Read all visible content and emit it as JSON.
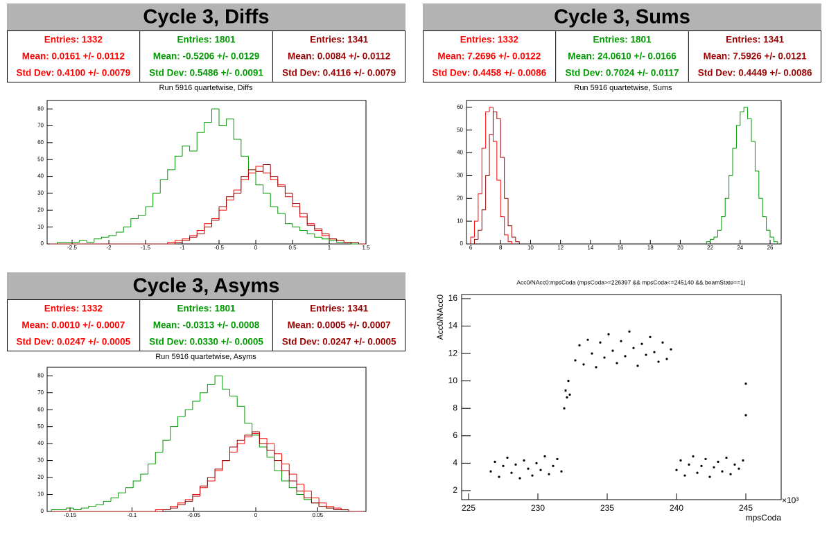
{
  "chart_data": [
    {
      "type": "histogram",
      "title": "Cycle 3, Diffs",
      "subtitle": "Run 5916 quartetwise, Diffs",
      "bins": [
        -2.8,
        -2.7,
        -2.6,
        -2.5,
        -2.4,
        -2.3,
        -2.2,
        -2.1,
        -2,
        -1.9,
        -1.8,
        -1.7,
        -1.6,
        -1.5,
        -1.4,
        -1.3,
        -1.2,
        -1.1,
        -1,
        -0.9,
        -0.8,
        -0.7,
        -0.6,
        -0.5,
        -0.4,
        -0.3,
        -0.2,
        -0.1,
        0,
        0.1,
        0.2,
        0.3,
        0.4,
        0.5,
        0.6,
        0.7,
        0.8,
        0.9,
        1,
        1.1,
        1.2,
        1.3,
        1.4,
        1.5
      ],
      "xlim": [
        -2.84,
        1.5
      ],
      "xticks": [
        -2.5,
        -2,
        -1.5,
        -1,
        -0.5,
        0,
        0.5,
        1,
        1.5
      ],
      "ylim": [
        0,
        85
      ],
      "yticks": [
        0,
        10,
        20,
        30,
        40,
        50,
        60,
        70,
        80
      ],
      "series": [
        {
          "color": "#ff0000",
          "stats": [
            "Entries: 1332",
            "Mean: 0.0161 +/- 0.0112",
            "Std Dev: 0.4100 +/- 0.0079"
          ],
          "values": [
            0,
            0,
            0,
            0,
            0,
            0,
            0,
            0,
            0,
            0,
            0,
            0,
            0,
            0,
            0,
            0,
            1,
            2,
            3,
            5,
            8,
            12,
            15,
            20,
            26,
            32,
            38,
            42,
            46,
            42,
            38,
            35,
            28,
            22,
            16,
            12,
            8,
            5,
            3,
            2,
            1,
            0,
            0
          ]
        },
        {
          "color": "#009900",
          "stats": [
            "Entries: 1801",
            "Mean: -0.5206 +/- 0.0129",
            "Std Dev: 0.5486 +/- 0.0091"
          ],
          "values": [
            0,
            1,
            1,
            1,
            2,
            1,
            3,
            4,
            5,
            7,
            10,
            15,
            17,
            22,
            30,
            38,
            44,
            52,
            58,
            55,
            66,
            72,
            80,
            70,
            74,
            62,
            52,
            44,
            35,
            30,
            22,
            18,
            12,
            10,
            8,
            6,
            4,
            3,
            2,
            1,
            1,
            0,
            0
          ]
        },
        {
          "color": "#990000",
          "stats": [
            "Entries: 1341",
            "Mean: 0.0084 +/- 0.0112",
            "Std Dev: 0.4116 +/- 0.0079"
          ],
          "values": [
            0,
            0,
            0,
            0,
            0,
            0,
            0,
            0,
            0,
            0,
            0,
            0,
            0,
            0,
            0,
            0,
            0,
            1,
            2,
            4,
            6,
            10,
            14,
            22,
            28,
            30,
            40,
            44,
            43,
            47,
            40,
            34,
            30,
            24,
            18,
            11,
            9,
            6,
            3,
            2,
            1,
            1,
            0
          ]
        }
      ]
    },
    {
      "type": "histogram",
      "title": "Cycle 3, Sums",
      "subtitle": "Run 5916 quartetwise, Sums",
      "xlim": [
        5.72,
        26.74
      ],
      "xticks": [
        6,
        8,
        10,
        12,
        14,
        16,
        18,
        20,
        22,
        24,
        26
      ],
      "ylim": [
        0,
        63
      ],
      "yticks": [
        0,
        10,
        20,
        30,
        40,
        50,
        60
      ],
      "series": [
        {
          "color": "#ff0000",
          "stats": [
            "Entries: 1332",
            "Mean: 7.2696 +/- 0.0122",
            "Std Dev: 0.4458 +/- 0.0086"
          ],
          "bins": [
            6,
            6.25,
            6.5,
            6.75,
            7,
            7.25,
            7.5,
            7.75,
            8,
            8.25,
            8.5,
            8.75
          ],
          "values": [
            3,
            10,
            22,
            42,
            58,
            60,
            45,
            28,
            12,
            4,
            1
          ]
        },
        {
          "color": "#009900",
          "stats": [
            "Entries: 1801",
            "Mean: 24.0610 +/- 0.0166",
            "Std Dev: 0.7024 +/- 0.0117"
          ],
          "bins": [
            21.75,
            22,
            22.25,
            22.5,
            22.75,
            23,
            23.25,
            23.5,
            23.75,
            24,
            24.25,
            24.5,
            24.75,
            25,
            25.25,
            25.5,
            25.75,
            26,
            26.25,
            26.5
          ],
          "values": [
            1,
            2,
            3,
            6,
            12,
            20,
            30,
            42,
            52,
            58,
            60,
            55,
            45,
            32,
            20,
            12,
            6,
            3,
            1
          ]
        },
        {
          "color": "#990000",
          "stats": [
            "Entries: 1341",
            "Mean: 7.5926 +/- 0.0121",
            "Std Dev: 0.4449 +/- 0.0086"
          ],
          "bins": [
            6.25,
            6.5,
            6.75,
            7,
            7.25,
            7.5,
            7.75,
            8,
            8.25,
            8.5,
            8.75,
            9,
            9.25
          ],
          "values": [
            2,
            6,
            15,
            30,
            48,
            58,
            55,
            38,
            20,
            8,
            3,
            1
          ]
        }
      ]
    },
    {
      "type": "histogram",
      "title": "Cycle 3, Asyms",
      "subtitle": "Run 5916 quartetwise, Asyms",
      "bins": [
        -0.165,
        -0.159,
        -0.153,
        -0.147,
        -0.141,
        -0.135,
        -0.129,
        -0.123,
        -0.117,
        -0.111,
        -0.105,
        -0.099,
        -0.093,
        -0.087,
        -0.081,
        -0.075,
        -0.069,
        -0.063,
        -0.057,
        -0.051,
        -0.045,
        -0.039,
        -0.033,
        -0.027,
        -0.021,
        -0.015,
        -0.009,
        -0.003,
        0.003,
        0.009,
        0.015,
        0.021,
        0.027,
        0.033,
        0.039,
        0.045,
        0.051,
        0.057,
        0.063,
        0.069,
        0.075,
        0.081,
        0.087
      ],
      "xlim": [
        -0.1685,
        0.089
      ],
      "xticks": [
        -0.15,
        -0.1,
        -0.05,
        0,
        0.05
      ],
      "ylim": [
        0,
        85
      ],
      "yticks": [
        0,
        10,
        20,
        30,
        40,
        50,
        60,
        70,
        80
      ],
      "series": [
        {
          "color": "#ff0000",
          "stats": [
            "Entries: 1332",
            "Mean: 0.0010 +/- 0.0007",
            "Std Dev: 0.0247 +/- 0.0005"
          ],
          "values": [
            0,
            0,
            0,
            0,
            0,
            0,
            0,
            0,
            0,
            0,
            0,
            0,
            0,
            0,
            1,
            1,
            3,
            5,
            7,
            10,
            14,
            18,
            24,
            30,
            35,
            40,
            44,
            46,
            43,
            40,
            34,
            28,
            22,
            16,
            12,
            8,
            5,
            3,
            2,
            1,
            0,
            0
          ]
        },
        {
          "color": "#009900",
          "stats": [
            "Entries: 1801",
            "Mean: -0.0313 +/- 0.0008",
            "Std Dev: 0.0330 +/- 0.0005"
          ],
          "values": [
            1,
            1,
            2,
            1,
            2,
            3,
            4,
            6,
            8,
            11,
            14,
            18,
            22,
            28,
            35,
            42,
            50,
            56,
            60,
            65,
            70,
            75,
            80,
            72,
            68,
            62,
            52,
            45,
            38,
            32,
            24,
            18,
            14,
            10,
            7,
            5,
            3,
            2,
            1,
            1,
            0,
            0
          ]
        },
        {
          "color": "#990000",
          "stats": [
            "Entries: 1341",
            "Mean: 0.0005 +/- 0.0007",
            "Std Dev: 0.0247 +/- 0.0005"
          ],
          "values": [
            0,
            0,
            0,
            0,
            0,
            0,
            0,
            0,
            0,
            0,
            0,
            0,
            0,
            0,
            0,
            1,
            2,
            4,
            6,
            9,
            15,
            20,
            25,
            30,
            38,
            42,
            45,
            47,
            40,
            36,
            30,
            24,
            18,
            12,
            8,
            5,
            3,
            2,
            1,
            1,
            0,
            0
          ]
        }
      ]
    },
    {
      "type": "scatter",
      "title": "Acc0/NAcc0:mpsCoda (mpsCoda>=226397 && mpsCoda<=245140 && beamState==1)",
      "x_label": "mpsCoda",
      "y_label": "Acc0/NAcc0",
      "x_multiplier": "×10³",
      "color": "#000000",
      "xlim": [
        224.5,
        247.55
      ],
      "xticks": [
        225,
        230,
        235,
        240,
        245
      ],
      "ylim": [
        1.34,
        16.3
      ],
      "yticks": [
        2,
        4,
        6,
        8,
        10,
        12,
        14,
        16
      ],
      "x": [
        226.6,
        226.9,
        227.2,
        227.5,
        227.8,
        228.1,
        228.4,
        228.7,
        229.0,
        229.3,
        229.6,
        229.9,
        230.2,
        230.5,
        230.8,
        231.1,
        231.4,
        231.7,
        231.9,
        232.0,
        232.1,
        232.2,
        232.3,
        232.7,
        233.0,
        233.3,
        233.6,
        233.9,
        234.2,
        234.5,
        234.8,
        235.1,
        235.4,
        235.7,
        236.0,
        236.3,
        236.6,
        236.9,
        237.2,
        237.5,
        237.8,
        238.1,
        238.4,
        238.7,
        239.0,
        239.3,
        239.6,
        240.0,
        240.3,
        240.6,
        240.9,
        241.2,
        241.5,
        241.8,
        242.1,
        242.4,
        242.7,
        243.0,
        243.3,
        243.6,
        243.9,
        244.2,
        244.5,
        244.8,
        245.0,
        245.0
      ],
      "values": [
        3.4,
        4.1,
        3.0,
        3.8,
        4.4,
        3.3,
        3.9,
        2.9,
        4.2,
        3.6,
        3.1,
        4.0,
        3.5,
        4.5,
        3.2,
        3.8,
        4.3,
        3.4,
        8.0,
        9.3,
        8.8,
        10.0,
        9.0,
        11.5,
        12.6,
        11.2,
        13.0,
        12.0,
        11.0,
        12.8,
        11.7,
        13.4,
        12.2,
        11.3,
        12.9,
        11.8,
        13.6,
        12.4,
        11.1,
        12.7,
        11.9,
        13.2,
        12.1,
        11.4,
        12.8,
        11.6,
        12.3,
        3.5,
        4.2,
        3.1,
        3.9,
        4.5,
        3.3,
        3.8,
        4.3,
        3.0,
        3.7,
        4.1,
        3.4,
        4.4,
        3.2,
        3.9,
        3.6,
        4.2,
        7.5,
        9.8
      ]
    }
  ]
}
